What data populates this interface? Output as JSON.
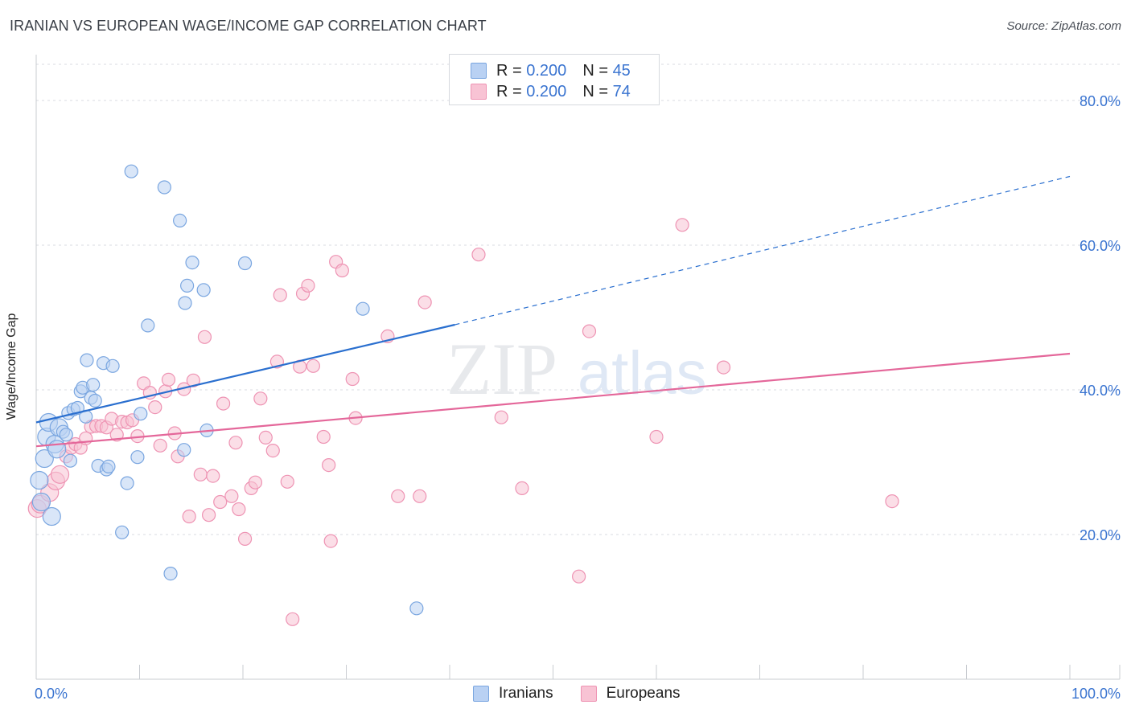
{
  "title": "IRANIAN VS EUROPEAN WAGE/INCOME GAP CORRELATION CHART",
  "source": "Source: ZipAtlas.com",
  "watermark": {
    "zip": "ZIP",
    "atlas": "atlas"
  },
  "colors": {
    "blue_fill": "#b9d1f3",
    "blue_stroke": "#7aa6e0",
    "blue_line": "#2a6fcf",
    "pink_fill": "#f8c3d4",
    "pink_stroke": "#ee93b3",
    "pink_line": "#e4679a",
    "tick_label": "#3a74d0",
    "grid": "#d8dbe0"
  },
  "legend": {
    "rows": [
      {
        "r_label": "R = ",
        "r_value": "0.200",
        "n_label": "N = ",
        "n_value": "45"
      },
      {
        "r_label": "R = ",
        "r_value": "0.200",
        "n_label": "N = ",
        "n_value": "74"
      }
    ]
  },
  "bottom_legend": [
    "Iranians",
    "Europeans"
  ],
  "chart_data": {
    "type": "scatter",
    "title": "IRANIAN VS EUROPEAN WAGE/INCOME GAP CORRELATION CHART",
    "xlabel": "",
    "ylabel": "Wage/Income Gap",
    "xlim": [
      0,
      100
    ],
    "ylim": [
      0,
      85
    ],
    "x_tick_labels": [
      "0.0%",
      "100.0%"
    ],
    "y_ticks": [
      20,
      40,
      60,
      80
    ],
    "y_tick_labels": [
      "20.0%",
      "40.0%",
      "60.0%",
      "80.0%"
    ],
    "grid": true,
    "legend_position": "top-center",
    "series": [
      {
        "name": "Iranians",
        "color": "#7aa6e0",
        "trend": {
          "x0": 0,
          "y0": 35.5,
          "x1": 40.5,
          "y1": 49.0,
          "dashed_to_x": 100,
          "dashed_to_y": 69.5
        },
        "points": [
          [
            0.3,
            27.5
          ],
          [
            0.5,
            24.5
          ],
          [
            0.8,
            30.5
          ],
          [
            1.0,
            33.5
          ],
          [
            1.2,
            35.5
          ],
          [
            1.5,
            22.5
          ],
          [
            1.8,
            32.5
          ],
          [
            2.0,
            31.8
          ],
          [
            2.2,
            34.8
          ],
          [
            2.6,
            34.2
          ],
          [
            2.9,
            33.8
          ],
          [
            3.1,
            36.8
          ],
          [
            3.3,
            30.2
          ],
          [
            3.6,
            37.3
          ],
          [
            4.0,
            37.5
          ],
          [
            4.3,
            39.8
          ],
          [
            4.5,
            40.3
          ],
          [
            4.8,
            36.3
          ],
          [
            4.9,
            44.1
          ],
          [
            5.3,
            38.9
          ],
          [
            5.5,
            40.7
          ],
          [
            5.7,
            38.5
          ],
          [
            6.0,
            29.5
          ],
          [
            6.5,
            43.7
          ],
          [
            6.8,
            29.0
          ],
          [
            7.0,
            29.4
          ],
          [
            7.4,
            43.3
          ],
          [
            8.3,
            20.3
          ],
          [
            8.8,
            27.1
          ],
          [
            9.2,
            70.2
          ],
          [
            9.8,
            30.7
          ],
          [
            10.1,
            36.7
          ],
          [
            10.8,
            48.9
          ],
          [
            12.4,
            68.0
          ],
          [
            13.0,
            14.6
          ],
          [
            13.9,
            63.4
          ],
          [
            14.3,
            31.7
          ],
          [
            14.4,
            52.0
          ],
          [
            14.6,
            54.4
          ],
          [
            15.1,
            57.6
          ],
          [
            16.2,
            53.8
          ],
          [
            16.5,
            34.4
          ],
          [
            20.2,
            57.5
          ],
          [
            31.6,
            51.2
          ],
          [
            36.8,
            9.8
          ]
        ]
      },
      {
        "name": "Europeans",
        "color": "#ee93b3",
        "trend": {
          "x0": 0,
          "y0": 32.2,
          "x1": 100,
          "y1": 45.0
        },
        "points": [
          [
            0.1,
            23.6
          ],
          [
            0.4,
            24.2
          ],
          [
            1.3,
            25.8
          ],
          [
            1.9,
            27.4
          ],
          [
            2.3,
            28.3
          ],
          [
            2.9,
            30.8
          ],
          [
            3.4,
            32.0
          ],
          [
            3.8,
            32.5
          ],
          [
            4.3,
            32.0
          ],
          [
            4.8,
            33.3
          ],
          [
            5.3,
            34.9
          ],
          [
            5.8,
            35.0
          ],
          [
            6.3,
            35.0
          ],
          [
            6.8,
            34.8
          ],
          [
            7.3,
            36.0
          ],
          [
            7.8,
            33.8
          ],
          [
            8.3,
            35.6
          ],
          [
            8.8,
            35.5
          ],
          [
            9.3,
            35.8
          ],
          [
            9.8,
            33.6
          ],
          [
            10.4,
            40.9
          ],
          [
            11.0,
            39.6
          ],
          [
            11.5,
            37.6
          ],
          [
            12.0,
            32.3
          ],
          [
            12.5,
            39.8
          ],
          [
            12.8,
            41.4
          ],
          [
            13.4,
            34.0
          ],
          [
            13.7,
            30.8
          ],
          [
            14.3,
            40.1
          ],
          [
            14.8,
            22.5
          ],
          [
            15.2,
            41.3
          ],
          [
            15.9,
            28.3
          ],
          [
            16.3,
            47.3
          ],
          [
            16.7,
            22.7
          ],
          [
            17.1,
            28.1
          ],
          [
            17.8,
            24.5
          ],
          [
            18.1,
            38.1
          ],
          [
            18.9,
            25.3
          ],
          [
            19.3,
            32.7
          ],
          [
            19.6,
            23.5
          ],
          [
            20.2,
            19.4
          ],
          [
            20.8,
            26.4
          ],
          [
            21.2,
            27.2
          ],
          [
            21.7,
            38.8
          ],
          [
            22.2,
            33.4
          ],
          [
            22.9,
            31.6
          ],
          [
            23.3,
            43.9
          ],
          [
            23.6,
            53.1
          ],
          [
            24.3,
            27.3
          ],
          [
            24.8,
            8.3
          ],
          [
            25.5,
            43.2
          ],
          [
            25.8,
            53.3
          ],
          [
            26.3,
            54.4
          ],
          [
            26.8,
            43.3
          ],
          [
            27.8,
            33.5
          ],
          [
            28.3,
            29.6
          ],
          [
            28.5,
            19.1
          ],
          [
            29.0,
            57.7
          ],
          [
            29.6,
            56.5
          ],
          [
            30.6,
            41.5
          ],
          [
            30.9,
            36.1
          ],
          [
            34.0,
            47.4
          ],
          [
            35.0,
            25.3
          ],
          [
            37.1,
            25.3
          ],
          [
            37.6,
            52.1
          ],
          [
            42.8,
            58.7
          ],
          [
            45.0,
            36.2
          ],
          [
            47.0,
            26.4
          ],
          [
            52.5,
            14.2
          ],
          [
            53.5,
            48.1
          ],
          [
            60.0,
            33.5
          ],
          [
            62.5,
            62.8
          ],
          [
            66.5,
            43.1
          ],
          [
            82.8,
            24.6
          ]
        ]
      }
    ]
  }
}
